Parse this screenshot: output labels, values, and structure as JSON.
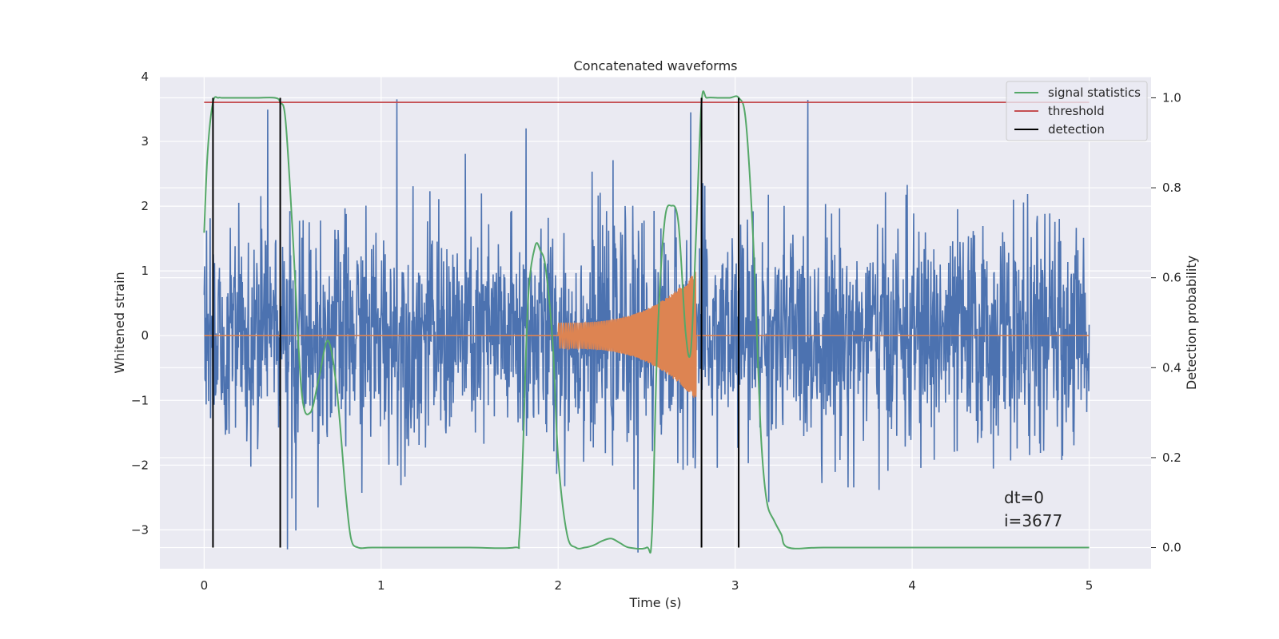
{
  "chart_data": {
    "type": "line",
    "title": "Concatenated waveforms",
    "xlabel": "Time (s)",
    "ylabel": "Whitened strain",
    "y2label": "Detection probability",
    "xlim": [
      -0.25,
      5.35
    ],
    "ylim": [
      -3.6,
      4.0
    ],
    "y2lim": [
      -0.047,
      1.047
    ],
    "xticks": [
      "0",
      "1",
      "2",
      "3",
      "4",
      "5"
    ],
    "yticks": [
      "4",
      "3",
      "2",
      "1",
      "0",
      "−1",
      "−2",
      "−3"
    ],
    "y2ticks": [
      "1.0",
      "0.8",
      "0.6",
      "0.4",
      "0.2",
      "0.0"
    ],
    "grid": true,
    "legend_placement": "top-right",
    "legend": [
      "signal statistics",
      "threshold",
      "detection"
    ],
    "annotations": [
      "dt=0",
      "i=3677"
    ],
    "colors": {
      "strain": "#4c72b0",
      "template": "#dd8452",
      "signal_statistics": "#55a868",
      "threshold": "#c44e52",
      "detection": "#000000",
      "axes_bg": "#eaeaf2",
      "grid": "#ffffff"
    },
    "series": [
      {
        "name": "",
        "axis": "left",
        "description_type": "noise",
        "x_range": [
          0,
          5
        ],
        "typical_band": [
          -1.5,
          1.5
        ],
        "peaks": [
          [
            1.09,
            3.65
          ],
          [
            1.82,
            3.2
          ],
          [
            2.45,
            -3.35
          ],
          [
            0.47,
            -3.3
          ],
          [
            2.75,
            3.45
          ]
        ]
      },
      {
        "name": "",
        "axis": "left",
        "description_type": "chirp",
        "x_range": [
          2.0,
          2.78
        ],
        "amplitude_start": 0.2,
        "amplitude_end": 1.0
      },
      {
        "name": "signal statistics",
        "axis": "right",
        "x": [
          0.0,
          0.02,
          0.05,
          0.08,
          0.1,
          0.15,
          0.2,
          0.3,
          0.4,
          0.43,
          0.46,
          0.5,
          0.55,
          0.6,
          0.65,
          0.7,
          0.75,
          0.8,
          0.83,
          0.87,
          0.95,
          1.2,
          1.5,
          1.75,
          1.78,
          1.8,
          1.83,
          1.87,
          1.9,
          1.93,
          1.97,
          2.0,
          2.05,
          2.1,
          2.15,
          2.2,
          2.25,
          2.3,
          2.35,
          2.4,
          2.5,
          2.53,
          2.56,
          2.6,
          2.64,
          2.68,
          2.72,
          2.75,
          2.78,
          2.81,
          2.84,
          2.9,
          2.97,
          3.02,
          3.06,
          3.1,
          3.13,
          3.15,
          3.18,
          3.22,
          3.26,
          3.3,
          3.5,
          4.0,
          4.5,
          5.0
        ],
        "y": [
          0.7,
          0.88,
          0.99,
          1.0,
          1.0,
          1.0,
          1.0,
          1.0,
          1.0,
          0.99,
          0.95,
          0.7,
          0.35,
          0.3,
          0.38,
          0.46,
          0.35,
          0.12,
          0.02,
          0.0,
          0.0,
          0.0,
          0.0,
          0.0,
          0.02,
          0.2,
          0.55,
          0.67,
          0.66,
          0.62,
          0.45,
          0.2,
          0.03,
          0.0,
          0.0,
          0.005,
          0.015,
          0.02,
          0.01,
          0.0,
          0.0,
          0.03,
          0.45,
          0.72,
          0.76,
          0.72,
          0.48,
          0.44,
          0.7,
          0.99,
          1.0,
          1.0,
          1.0,
          1.0,
          0.95,
          0.7,
          0.4,
          0.22,
          0.1,
          0.06,
          0.03,
          0.0,
          0.0,
          0.0,
          0.0,
          0.0
        ]
      },
      {
        "name": "threshold",
        "axis": "right",
        "x": [
          0,
          5
        ],
        "y": [
          0.99,
          0.99
        ]
      },
      {
        "name": "detection",
        "axis": "right",
        "x_positions": [
          0.05,
          0.43,
          2.81,
          3.02
        ],
        "y_range": [
          0.0,
          1.0
        ]
      }
    ]
  }
}
